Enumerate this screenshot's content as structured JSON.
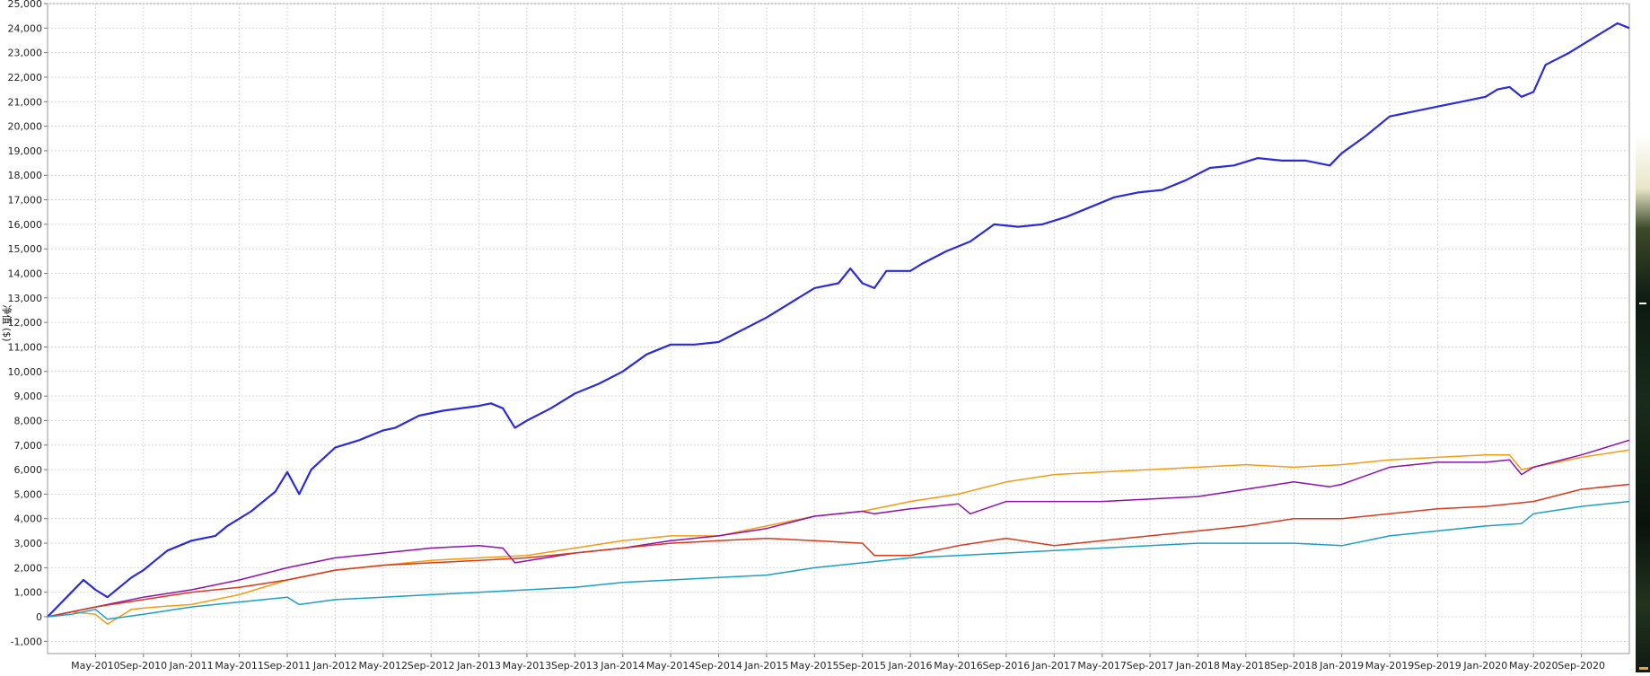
{
  "chart_data": {
    "type": "line",
    "title": "",
    "xlabel": "",
    "ylabel": "净值 ($)",
    "ylim": [
      -1500,
      25000
    ],
    "y_ticks": [
      -1000,
      0,
      1000,
      2000,
      3000,
      4000,
      5000,
      6000,
      7000,
      8000,
      9000,
      10000,
      11000,
      12000,
      13000,
      14000,
      15000,
      16000,
      17000,
      18000,
      19000,
      20000,
      21000,
      22000,
      23000,
      24000,
      25000
    ],
    "y_tick_labels": [
      "-1,000",
      "0",
      "1,000",
      "2,000",
      "3,000",
      "4,000",
      "5,000",
      "6,000",
      "7,000",
      "8,000",
      "9,000",
      "10,000",
      "11,000",
      "12,000",
      "13,000",
      "14,000",
      "15,000",
      "16,000",
      "17,000",
      "18,000",
      "19,000",
      "20,000",
      "21,000",
      "22,000",
      "23,000",
      "24,000",
      "25,000"
    ],
    "x_range": [
      "2010-01",
      "2021-01"
    ],
    "x_tick_labels": [
      "May-2010",
      "Sep-2010",
      "Jan-2011",
      "May-2011",
      "Sep-2011",
      "Jan-2012",
      "May-2012",
      "Sep-2012",
      "Jan-2013",
      "May-2013",
      "Sep-2013",
      "Jan-2014",
      "May-2014",
      "Sep-2014",
      "Jan-2015",
      "May-2015",
      "Sep-2015",
      "Jan-2016",
      "May-2016",
      "Sep-2016",
      "Jan-2017",
      "May-2017",
      "Sep-2017",
      "Jan-2018",
      "May-2018",
      "Sep-2018",
      "Jan-2019",
      "May-2019",
      "Sep-2019",
      "Jan-2020",
      "May-2020",
      "Sep-2020"
    ],
    "x_tick_dates": [
      "2010-05",
      "2010-09",
      "2011-01",
      "2011-05",
      "2011-09",
      "2012-01",
      "2012-05",
      "2012-09",
      "2013-01",
      "2013-05",
      "2013-09",
      "2014-01",
      "2014-05",
      "2014-09",
      "2015-01",
      "2015-05",
      "2015-09",
      "2016-01",
      "2016-05",
      "2016-09",
      "2017-01",
      "2017-05",
      "2017-09",
      "2018-01",
      "2018-05",
      "2018-09",
      "2019-01",
      "2019-05",
      "2019-09",
      "2020-01",
      "2020-05",
      "2020-09"
    ],
    "grid": true,
    "series": [
      {
        "color": "#2b2bdb",
        "x": [
          "2010-01",
          "2010-02",
          "2010-03",
          "2010-04",
          "2010-05",
          "2010-06",
          "2010-07",
          "2010-08",
          "2010-09",
          "2010-10",
          "2010-11",
          "2011-01",
          "2011-03",
          "2011-04",
          "2011-06",
          "2011-08",
          "2011-09",
          "2011-10",
          "2011-11",
          "2012-01",
          "2012-03",
          "2012-05",
          "2012-06",
          "2012-08",
          "2012-10",
          "2013-01",
          "2013-02",
          "2013-03",
          "2013-04",
          "2013-05",
          "2013-07",
          "2013-09",
          "2013-11",
          "2014-01",
          "2014-03",
          "2014-05",
          "2014-07",
          "2014-09",
          "2014-11",
          "2015-01",
          "2015-03",
          "2015-05",
          "2015-07",
          "2015-08",
          "2015-09",
          "2015-10",
          "2015-11",
          "2016-01",
          "2016-02",
          "2016-04",
          "2016-06",
          "2016-08",
          "2016-10",
          "2016-12",
          "2017-02",
          "2017-04",
          "2017-06",
          "2017-08",
          "2017-10",
          "2017-12",
          "2018-02",
          "2018-04",
          "2018-06",
          "2018-08",
          "2018-10",
          "2018-12",
          "2019-01",
          "2019-03",
          "2019-05",
          "2019-07",
          "2019-09",
          "2019-11",
          "2020-01",
          "2020-02",
          "2020-03",
          "2020-04",
          "2020-05",
          "2020-06",
          "2020-08",
          "2020-10",
          "2020-12",
          "2021-01"
        ],
        "values": [
          0,
          500,
          1000,
          1500,
          1100,
          800,
          1200,
          1600,
          1900,
          2300,
          2700,
          3100,
          3300,
          3700,
          4300,
          5100,
          5900,
          5000,
          6000,
          6900,
          7200,
          7600,
          7700,
          8200,
          8400,
          8600,
          8700,
          8500,
          7700,
          8000,
          8500,
          9100,
          9500,
          10000,
          10700,
          11100,
          11100,
          11200,
          11700,
          12200,
          12800,
          13400,
          13600,
          14200,
          13600,
          13400,
          14100,
          14100,
          14400,
          14900,
          15300,
          16000,
          15900,
          16000,
          16300,
          16700,
          17100,
          17300,
          17400,
          17800,
          18300,
          18400,
          18700,
          18600,
          18600,
          18400,
          18900,
          19600,
          20400,
          20600,
          20800,
          21000,
          21200,
          21500,
          21600,
          21200,
          21400,
          22500,
          23000,
          23600,
          24200,
          24000
        ]
      },
      {
        "color": "#f39c12",
        "x": [
          "2010-01",
          "2010-03",
          "2010-05",
          "2010-06",
          "2010-07",
          "2010-08",
          "2010-10",
          "2011-01",
          "2011-05",
          "2011-09",
          "2012-01",
          "2012-05",
          "2012-09",
          "2013-01",
          "2013-05",
          "2013-09",
          "2014-01",
          "2014-05",
          "2014-09",
          "2015-01",
          "2015-05",
          "2015-09",
          "2016-01",
          "2016-05",
          "2016-09",
          "2017-01",
          "2017-05",
          "2017-09",
          "2018-01",
          "2018-05",
          "2018-09",
          "2019-01",
          "2019-05",
          "2019-09",
          "2020-01",
          "2020-03",
          "2020-04",
          "2020-05",
          "2020-09",
          "2021-01"
        ],
        "values": [
          0,
          200,
          100,
          -300,
          0,
          300,
          400,
          500,
          900,
          1500,
          1900,
          2100,
          2300,
          2400,
          2500,
          2800,
          3100,
          3300,
          3300,
          3700,
          4100,
          4300,
          4700,
          5000,
          5500,
          5800,
          5900,
          6000,
          6100,
          6200,
          6100,
          6200,
          6400,
          6500,
          6600,
          6600,
          6000,
          6100,
          6500,
          6800
        ]
      },
      {
        "color": "#8e10b0",
        "x": [
          "2010-01",
          "2010-05",
          "2010-09",
          "2011-01",
          "2011-05",
          "2011-09",
          "2012-01",
          "2012-05",
          "2012-09",
          "2013-01",
          "2013-03",
          "2013-04",
          "2013-09",
          "2014-01",
          "2014-05",
          "2014-09",
          "2015-01",
          "2015-05",
          "2015-09",
          "2015-10",
          "2016-01",
          "2016-05",
          "2016-06",
          "2016-09",
          "2017-01",
          "2017-05",
          "2017-09",
          "2018-01",
          "2018-05",
          "2018-09",
          "2018-12",
          "2019-01",
          "2019-05",
          "2019-09",
          "2020-01",
          "2020-03",
          "2020-04",
          "2020-05",
          "2020-09",
          "2021-01"
        ],
        "values": [
          0,
          400,
          800,
          1100,
          1500,
          2000,
          2400,
          2600,
          2800,
          2900,
          2800,
          2200,
          2600,
          2800,
          3100,
          3300,
          3600,
          4100,
          4300,
          4200,
          4400,
          4600,
          4200,
          4700,
          4700,
          4700,
          4800,
          4900,
          5200,
          5500,
          5300,
          5400,
          6100,
          6300,
          6300,
          6400,
          5800,
          6100,
          6600,
          7200
        ]
      },
      {
        "color": "#d63a1a",
        "x": [
          "2010-01",
          "2010-05",
          "2010-09",
          "2011-01",
          "2011-05",
          "2011-09",
          "2012-01",
          "2012-05",
          "2012-09",
          "2013-01",
          "2013-05",
          "2013-09",
          "2014-01",
          "2014-05",
          "2014-09",
          "2015-01",
          "2015-05",
          "2015-09",
          "2015-10",
          "2016-01",
          "2016-05",
          "2016-09",
          "2017-01",
          "2017-05",
          "2017-09",
          "2018-01",
          "2018-05",
          "2018-09",
          "2019-01",
          "2019-05",
          "2019-09",
          "2020-01",
          "2020-05",
          "2020-09",
          "2021-01"
        ],
        "values": [
          0,
          400,
          700,
          1000,
          1200,
          1500,
          1900,
          2100,
          2200,
          2300,
          2400,
          2600,
          2800,
          3000,
          3100,
          3200,
          3100,
          3000,
          2500,
          2500,
          2900,
          3200,
          2900,
          3100,
          3300,
          3500,
          3700,
          4000,
          4000,
          4200,
          4400,
          4500,
          4700,
          5200,
          5400
        ]
      },
      {
        "color": "#1aa0c8",
        "x": [
          "2010-01",
          "2010-03",
          "2010-05",
          "2010-06",
          "2010-09",
          "2011-01",
          "2011-05",
          "2011-09",
          "2011-10",
          "2012-01",
          "2012-05",
          "2012-09",
          "2013-01",
          "2013-05",
          "2013-09",
          "2014-01",
          "2014-05",
          "2014-09",
          "2015-01",
          "2015-05",
          "2015-09",
          "2016-01",
          "2016-05",
          "2016-09",
          "2017-01",
          "2017-05",
          "2017-09",
          "2018-01",
          "2018-05",
          "2018-09",
          "2019-01",
          "2019-05",
          "2019-09",
          "2020-01",
          "2020-04",
          "2020-05",
          "2020-09",
          "2021-01"
        ],
        "values": [
          0,
          100,
          300,
          -100,
          100,
          400,
          600,
          800,
          500,
          700,
          800,
          900,
          1000,
          1100,
          1200,
          1400,
          1500,
          1600,
          1700,
          2000,
          2200,
          2400,
          2500,
          2600,
          2700,
          2800,
          2900,
          3000,
          3000,
          3000,
          2900,
          3300,
          3500,
          3700,
          3800,
          4200,
          4500,
          4700
        ]
      }
    ]
  }
}
